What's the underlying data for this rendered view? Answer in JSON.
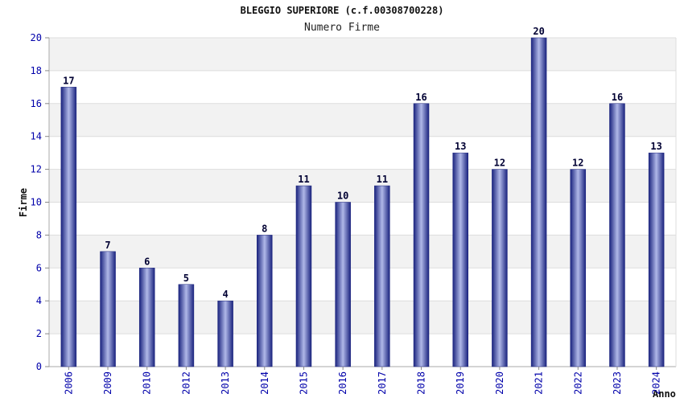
{
  "title": "BLEGGIO SUPERIORE (c.f.00308700228)",
  "subtitle": "Numero Firme",
  "chart_data": {
    "type": "bar",
    "title": "BLEGGIO SUPERIORE (c.f.00308700228)",
    "subtitle": "Numero Firme",
    "xlabel": "Anno",
    "ylabel": "Firme",
    "categories": [
      "2006",
      "2009",
      "2010",
      "2012",
      "2013",
      "2014",
      "2015",
      "2016",
      "2017",
      "2018",
      "2019",
      "2020",
      "2021",
      "2022",
      "2023",
      "2024"
    ],
    "values": [
      17,
      7,
      6,
      5,
      4,
      8,
      11,
      10,
      11,
      16,
      13,
      12,
      20,
      12,
      16,
      13
    ],
    "ylim": [
      0,
      20
    ],
    "yticks": [
      0,
      2,
      4,
      6,
      8,
      10,
      12,
      14,
      16,
      18,
      20
    ],
    "grid": true,
    "bar_color": "#1a237e",
    "bar_highlight": "#b0b8e8",
    "band_color": "#f2f2f2"
  }
}
